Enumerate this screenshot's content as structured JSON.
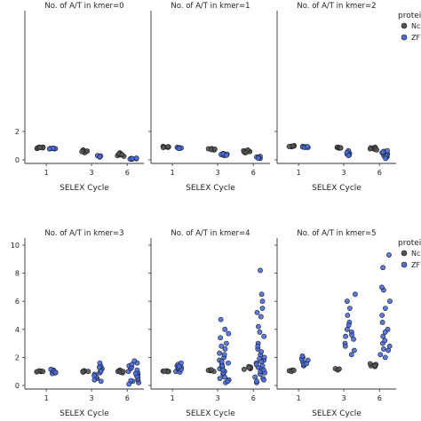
{
  "legend": {
    "title": "protein",
    "entries": [
      {
        "label": "Nc",
        "color": "#555555"
      },
      {
        "label": "ZF",
        "color": "#4a6ee0"
      }
    ]
  },
  "chart_data": {
    "type": "scatter",
    "xlabel": "SELEX Cycle",
    "ylim": [
      0,
      10
    ],
    "yticks": [
      0,
      2,
      4,
      6,
      8,
      10
    ],
    "xticks": [
      1,
      3,
      6
    ],
    "colors": {
      "Nc": "#555555",
      "ZF": "#4a6ee0"
    },
    "panels": [
      {
        "title": "No. of A/T in kmer=0",
        "groups": [
          {
            "cycle": 1,
            "protein": "Nc",
            "values": [
              0.85,
              0.9,
              0.8,
              0.88,
              0.86,
              0.84,
              0.9,
              0.87
            ]
          },
          {
            "cycle": 1,
            "protein": "ZF",
            "values": [
              0.8,
              0.78,
              0.82,
              0.79,
              0.8,
              0.81,
              0.77
            ]
          },
          {
            "cycle": 3,
            "protein": "Nc",
            "values": [
              0.55,
              0.6,
              0.7,
              0.5,
              0.65,
              0.58,
              0.62
            ]
          },
          {
            "cycle": 3,
            "protein": "ZF",
            "values": [
              0.25,
              0.3,
              0.2,
              0.28,
              0.22
            ]
          },
          {
            "cycle": 6,
            "protein": "Nc",
            "values": [
              0.3,
              0.45,
              0.5,
              0.35,
              0.4,
              0.25,
              0.42,
              0.38
            ]
          },
          {
            "cycle": 6,
            "protein": "ZF",
            "values": [
              0.05,
              0.1,
              0.08,
              0.12,
              0.06,
              0.09
            ]
          }
        ]
      },
      {
        "title": "No. of A/T in kmer=1",
        "groups": [
          {
            "cycle": 1,
            "protein": "Nc",
            "values": [
              0.9,
              0.92,
              0.88,
              0.95,
              0.9,
              0.87,
              0.93
            ]
          },
          {
            "cycle": 1,
            "protein": "ZF",
            "values": [
              0.85,
              0.82,
              0.88,
              0.86,
              0.84,
              0.8
            ]
          },
          {
            "cycle": 3,
            "protein": "Nc",
            "values": [
              0.75,
              0.8,
              0.7,
              0.78,
              0.72,
              0.76
            ]
          },
          {
            "cycle": 3,
            "protein": "ZF",
            "values": [
              0.4,
              0.35,
              0.45,
              0.3,
              0.38,
              0.42,
              0.33
            ]
          },
          {
            "cycle": 6,
            "protein": "Nc",
            "values": [
              0.5,
              0.6,
              0.65,
              0.55,
              0.62,
              0.58,
              0.7,
              0.52
            ]
          },
          {
            "cycle": 6,
            "protein": "ZF",
            "values": [
              0.15,
              0.2,
              0.1,
              0.25,
              0.18,
              0.12
            ]
          }
        ]
      },
      {
        "title": "No. of A/T in kmer=2",
        "groups": [
          {
            "cycle": 1,
            "protein": "Nc",
            "values": [
              0.95,
              1.0,
              0.92,
              0.97,
              0.98,
              0.94
            ]
          },
          {
            "cycle": 1,
            "protein": "ZF",
            "values": [
              0.9,
              0.92,
              0.88,
              0.95,
              0.91,
              0.87,
              0.93
            ]
          },
          {
            "cycle": 3,
            "protein": "Nc",
            "values": [
              0.85,
              0.88,
              0.9,
              0.82,
              0.86,
              0.84
            ]
          },
          {
            "cycle": 3,
            "protein": "ZF",
            "values": [
              0.5,
              0.6,
              0.4,
              0.55,
              0.45,
              0.35,
              0.65,
              0.5,
              0.3
            ]
          },
          {
            "cycle": 6,
            "protein": "Nc",
            "values": [
              0.8,
              0.85,
              0.75,
              0.9,
              0.78,
              0.82,
              0.7
            ]
          },
          {
            "cycle": 6,
            "protein": "ZF",
            "values": [
              0.4,
              0.5,
              0.3,
              0.6,
              0.2,
              0.45,
              0.35,
              0.55,
              0.25,
              0.1,
              0.65
            ]
          }
        ]
      },
      {
        "title": "No. of A/T in kmer=3",
        "groups": [
          {
            "cycle": 1,
            "protein": "Nc",
            "values": [
              1.0,
              1.02,
              0.98,
              1.05,
              1.0,
              0.97
            ]
          },
          {
            "cycle": 1,
            "protein": "ZF",
            "values": [
              0.9,
              1.0,
              1.1,
              0.95,
              1.05,
              0.85,
              1.15,
              1.0,
              0.92
            ]
          },
          {
            "cycle": 3,
            "protein": "Nc",
            "values": [
              1.0,
              1.05,
              0.95,
              1.02,
              0.98,
              1.0
            ]
          },
          {
            "cycle": 3,
            "protein": "ZF",
            "values": [
              0.5,
              0.8,
              1.0,
              1.2,
              1.4,
              0.6,
              0.9,
              1.1,
              0.4,
              0.7,
              1.3,
              1.6,
              0.3,
              1.0
            ]
          },
          {
            "cycle": 6,
            "protein": "Nc",
            "values": [
              0.9,
              1.0,
              1.1,
              1.05,
              0.95,
              1.0
            ]
          },
          {
            "cycle": 6,
            "protein": "ZF",
            "values": [
              0.2,
              0.4,
              0.6,
              0.8,
              1.0,
              1.2,
              1.4,
              1.6,
              0.3,
              0.5,
              0.7,
              0.9,
              1.1,
              1.3,
              0.1,
              0.35,
              0.65,
              1.5,
              1.75,
              0.85
            ]
          }
        ]
      },
      {
        "title": "No. of A/T in kmer=4",
        "groups": [
          {
            "cycle": 1,
            "protein": "Nc",
            "values": [
              1.0,
              1.05,
              0.98,
              1.02,
              1.0
            ]
          },
          {
            "cycle": 1,
            "protein": "ZF",
            "values": [
              1.0,
              1.2,
              1.4,
              1.1,
              1.3,
              1.5,
              0.95,
              1.25,
              1.6,
              1.15,
              1.35
            ]
          },
          {
            "cycle": 3,
            "protein": "Nc",
            "values": [
              1.05,
              1.1,
              1.0,
              1.08,
              1.12
            ]
          },
          {
            "cycle": 3,
            "protein": "ZF",
            "values": [
              0.2,
              0.5,
              0.8,
              1.0,
              1.2,
              1.5,
              1.8,
              2.0,
              2.3,
              2.6,
              3.0,
              3.4,
              4.0,
              4.7,
              0.4,
              0.9,
              1.3,
              1.6,
              2.2,
              0.6,
              1.1,
              1.4,
              1.7,
              0.3,
              2.8,
              3.7
            ]
          },
          {
            "cycle": 6,
            "protein": "Nc",
            "values": [
              1.2,
              1.3,
              1.25,
              1.15,
              1.35,
              1.28
            ]
          },
          {
            "cycle": 6,
            "protein": "ZF",
            "values": [
              0.2,
              0.5,
              0.8,
              1.0,
              1.3,
              1.6,
              1.9,
              2.2,
              2.6,
              3.0,
              3.5,
              4.2,
              4.9,
              5.5,
              6.0,
              6.5,
              8.2,
              0.4,
              0.9,
              1.2,
              1.5,
              1.8,
              2.4,
              0.6,
              1.1,
              1.4,
              2.0,
              2.8,
              3.8,
              0.3,
              1.7,
              5.2
            ]
          }
        ]
      },
      {
        "title": "No. of A/T in kmer=5",
        "groups": [
          {
            "cycle": 1,
            "protein": "Nc",
            "values": [
              1.05,
              1.1,
              1.0,
              1.08
            ]
          },
          {
            "cycle": 1,
            "protein": "ZF",
            "values": [
              1.4,
              1.6,
              1.8,
              2.0,
              1.7,
              1.5,
              1.9,
              2.1,
              1.55
            ]
          },
          {
            "cycle": 3,
            "protein": "Nc",
            "values": [
              1.15,
              1.2,
              1.1,
              1.18
            ]
          },
          {
            "cycle": 3,
            "protein": "ZF",
            "values": [
              2.5,
              3.0,
              3.5,
              4.0,
              4.5,
              5.0,
              5.5,
              6.0,
              6.5,
              2.8,
              3.3,
              3.8,
              4.3,
              2.2,
              3.6
            ]
          },
          {
            "cycle": 6,
            "protein": "Nc",
            "values": [
              1.4,
              1.5,
              1.45,
              1.35,
              1.55,
              1.42
            ]
          },
          {
            "cycle": 6,
            "protein": "ZF",
            "values": [
              2.0,
              2.5,
              3.0,
              3.5,
              4.0,
              5.0,
              6.0,
              6.8,
              8.4,
              9.3,
              2.2,
              2.8,
              3.2,
              4.5,
              5.5,
              7.0,
              2.6,
              3.8
            ]
          }
        ]
      }
    ]
  }
}
